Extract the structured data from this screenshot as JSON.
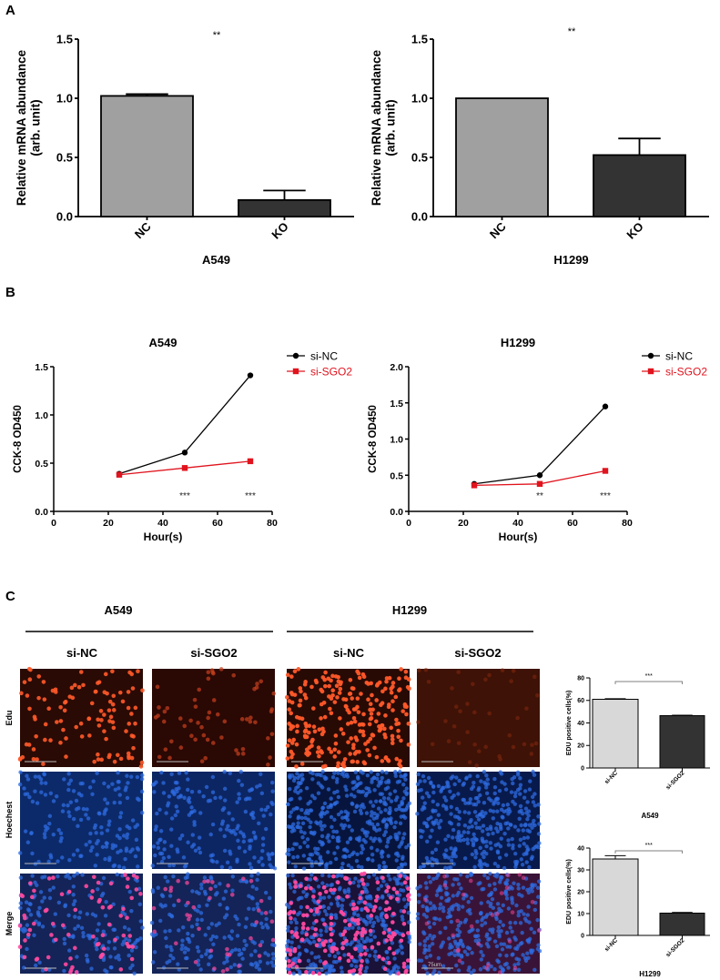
{
  "panel_labels": {
    "a": "A",
    "b": "B",
    "c": "C"
  },
  "chart_data": [
    {
      "id": "a-a549",
      "type": "bar",
      "title": "",
      "xlabel": "A549",
      "ylabel": "Relative mRNA abundance",
      "ylabel2": "(arb. unit)",
      "categories": [
        "NC",
        "KO"
      ],
      "values": [
        1.02,
        0.14
      ],
      "errors": [
        0.015,
        0.08
      ],
      "colors": [
        "#a0a0a0",
        "#333333"
      ],
      "ylim": [
        0,
        1.5
      ],
      "yticks": [
        "0.0",
        "0.5",
        "1.0",
        "1.5"
      ],
      "significance": "**"
    },
    {
      "id": "a-h1299",
      "type": "bar",
      "title": "",
      "xlabel": "H1299",
      "ylabel": "Relative mRNA abundance",
      "ylabel2": "(arb. unit)",
      "categories": [
        "NC",
        "KO"
      ],
      "values": [
        1.0,
        0.52
      ],
      "errors": [
        0.0,
        0.14
      ],
      "colors": [
        "#a0a0a0",
        "#333333"
      ],
      "ylim": [
        0,
        1.5
      ],
      "yticks": [
        "0.0",
        "0.5",
        "1.0",
        "1.5"
      ],
      "significance": "**"
    },
    {
      "id": "b-a549",
      "type": "line",
      "title": "A549",
      "xlabel": "Hour(s)",
      "ylabel": "CCK-8 OD450",
      "x": [
        24,
        48,
        72
      ],
      "xlim": [
        0,
        80
      ],
      "xticks": [
        "0",
        "20",
        "40",
        "60",
        "80"
      ],
      "ylim": [
        0,
        1.5
      ],
      "yticks": [
        "0.0",
        "0.5",
        "1.0",
        "1.5"
      ],
      "series": [
        {
          "name": "si-NC",
          "values": [
            0.39,
            0.61,
            1.41
          ],
          "color": "#000000",
          "marker": "circle"
        },
        {
          "name": "si-SGO2",
          "values": [
            0.38,
            0.45,
            0.52
          ],
          "color": "#e0141e",
          "marker": "square"
        }
      ],
      "annotations": [
        {
          "x": 48,
          "text": "***"
        },
        {
          "x": 72,
          "text": "***"
        }
      ],
      "legend": "top-right"
    },
    {
      "id": "b-h1299",
      "type": "line",
      "title": "H1299",
      "xlabel": "Hour(s)",
      "ylabel": "CCK-8 OD450",
      "x": [
        24,
        48,
        72
      ],
      "xlim": [
        0,
        80
      ],
      "xticks": [
        "0",
        "20",
        "40",
        "60",
        "80"
      ],
      "ylim": [
        0,
        2.0
      ],
      "yticks": [
        "0.0",
        "0.5",
        "1.0",
        "1.5",
        "2.0"
      ],
      "series": [
        {
          "name": "si-NC",
          "values": [
            0.38,
            0.5,
            1.45
          ],
          "color": "#000000",
          "marker": "circle"
        },
        {
          "name": "si-SGO2",
          "values": [
            0.36,
            0.38,
            0.56
          ],
          "color": "#e0141e",
          "marker": "square"
        }
      ],
      "annotations": [
        {
          "x": 48,
          "text": "**"
        },
        {
          "x": 72,
          "text": "***"
        }
      ],
      "legend": "top-right"
    },
    {
      "id": "c-a549",
      "type": "bar",
      "title": "",
      "xlabel": "A549",
      "ylabel": "EDU positive cells(%)",
      "categories": [
        "si-NC",
        "si-SGO2"
      ],
      "values": [
        61,
        46.5
      ],
      "errors": [
        0.5,
        0.4
      ],
      "colors": [
        "#d8d8d8",
        "#333333"
      ],
      "ylim": [
        0,
        80
      ],
      "yticks": [
        "0",
        "20",
        "40",
        "60",
        "80"
      ],
      "significance": "***"
    },
    {
      "id": "c-h1299",
      "type": "bar",
      "title": "",
      "xlabel": "H1299",
      "ylabel": "EDU positive cells(%)",
      "categories": [
        "si-NC",
        "si-SGO2"
      ],
      "values": [
        35,
        10.2
      ],
      "errors": [
        1.5,
        0.3
      ],
      "colors": [
        "#d8d8d8",
        "#333333"
      ],
      "ylim": [
        0,
        40
      ],
      "yticks": [
        "0",
        "10",
        "20",
        "30",
        "40"
      ],
      "significance": "***"
    }
  ],
  "microscopy": {
    "groups": [
      "A549",
      "H1299"
    ],
    "columns": [
      "si-NC",
      "si-SGO2",
      "si-NC",
      "si-SGO2"
    ],
    "rows": [
      "Edu",
      "Hoechest",
      "Merge"
    ],
    "scale_bar_label": "75um"
  }
}
